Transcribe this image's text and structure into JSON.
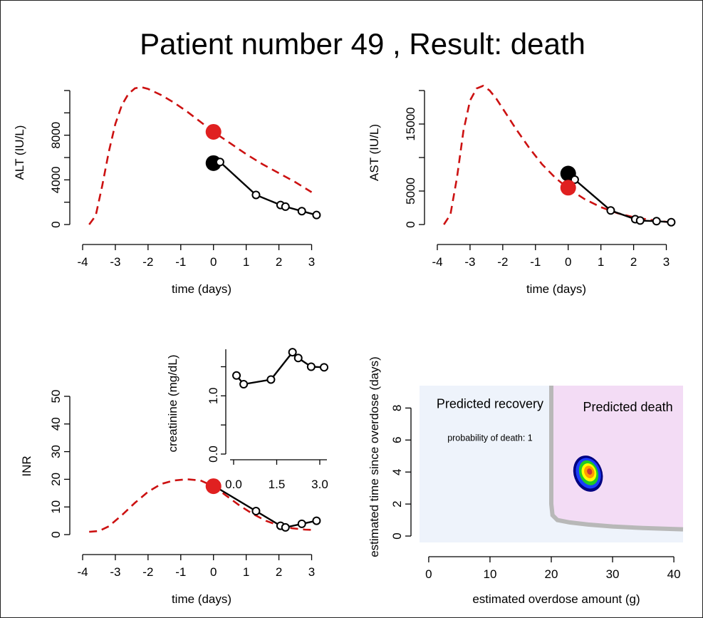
{
  "title": "Patient number 49 , Result: death",
  "chart_data": [
    {
      "type": "line",
      "id": "alt",
      "xlabel": "time (days)",
      "ylabel": "ALT (IU/L)",
      "xlim": [
        -4,
        3.25
      ],
      "ylim": [
        0,
        12000
      ],
      "xticks": [
        -4,
        -3,
        -2,
        -1,
        0,
        1,
        2,
        3
      ],
      "yticks": [
        0,
        4000,
        8000
      ],
      "series": [
        {
          "kind": "model-dashed",
          "x": [
            -3.8,
            -3.6,
            -3.4,
            -3.2,
            -3.0,
            -2.8,
            -2.6,
            -2.4,
            -2.2,
            -2.0,
            -1.6,
            -1.2,
            -0.8,
            -0.4,
            0,
            0.5,
            1.0,
            1.5,
            2.0,
            2.5,
            3.0
          ],
          "y": [
            0,
            800,
            3500,
            6500,
            9000,
            10700,
            11700,
            12200,
            12300,
            12150,
            11600,
            10900,
            10100,
            9200,
            8300,
            7300,
            6300,
            5400,
            4600,
            3800,
            2900
          ]
        },
        {
          "kind": "observed",
          "x": [
            0.2,
            1.3,
            2.05,
            2.2,
            2.7,
            3.15
          ],
          "y": [
            5600,
            2650,
            1750,
            1600,
            1200,
            850
          ]
        },
        {
          "kind": "marker-black",
          "x": [
            0
          ],
          "y": [
            5500
          ]
        },
        {
          "kind": "marker-red",
          "x": [
            0
          ],
          "y": [
            8300
          ]
        }
      ]
    },
    {
      "type": "line",
      "id": "ast",
      "xlabel": "time (days)",
      "ylabel": "AST (IU/L)",
      "xlim": [
        -4,
        3.25
      ],
      "ylim": [
        0,
        20000
      ],
      "xticks": [
        -4,
        -3,
        -2,
        -1,
        0,
        1,
        2,
        3
      ],
      "yticks": [
        0,
        5000,
        15000
      ],
      "series": [
        {
          "kind": "model-dashed",
          "x": [
            -3.8,
            -3.6,
            -3.4,
            -3.2,
            -3.0,
            -2.8,
            -2.6,
            -2.4,
            -2.2,
            -2.0,
            -1.6,
            -1.2,
            -0.8,
            -0.4,
            0,
            0.5,
            1.0,
            1.5,
            2.0,
            2.5,
            3.0,
            3.15
          ],
          "y": [
            0,
            1500,
            7000,
            14000,
            18500,
            20300,
            20700,
            20000,
            18800,
            17300,
            14300,
            11500,
            9000,
            7000,
            5400,
            3800,
            2600,
            1700,
            1100,
            700,
            400,
            300
          ]
        },
        {
          "kind": "observed",
          "x": [
            0.2,
            1.3,
            2.05,
            2.2,
            2.7,
            3.15
          ],
          "y": [
            6700,
            2100,
            800,
            600,
            500,
            350
          ]
        },
        {
          "kind": "marker-black",
          "x": [
            0
          ],
          "y": [
            7600
          ]
        },
        {
          "kind": "marker-red",
          "x": [
            0
          ],
          "y": [
            5500
          ]
        }
      ]
    },
    {
      "type": "line",
      "id": "inr",
      "xlabel": "time (days)",
      "ylabel": "INR",
      "xlim": [
        -4,
        3.25
      ],
      "ylim": [
        0,
        50
      ],
      "xticks": [
        -4,
        -3,
        -2,
        -1,
        0,
        1,
        2,
        3
      ],
      "yticks": [
        0,
        10,
        20,
        30,
        40,
        50
      ],
      "series": [
        {
          "kind": "model-dashed",
          "x": [
            -3.8,
            -3.5,
            -3.2,
            -2.8,
            -2.4,
            -2.0,
            -1.6,
            -1.2,
            -0.8,
            -0.4,
            0,
            0.4,
            0.8,
            1.2,
            1.6,
            2.0,
            2.4,
            2.8,
            3.0
          ],
          "y": [
            1,
            1.3,
            3,
            7,
            11.5,
            15.5,
            18.3,
            19.6,
            20,
            19.6,
            17.5,
            14,
            10.5,
            7.5,
            5,
            3.3,
            2.3,
            1.8,
            1.7
          ]
        },
        {
          "kind": "observed",
          "x": [
            0.1,
            1.3,
            2.05,
            2.2,
            2.7,
            3.15
          ],
          "y": [
            17,
            8.5,
            3.2,
            2.6,
            3.9,
            5.0
          ]
        },
        {
          "kind": "marker-red",
          "x": [
            0
          ],
          "y": [
            17.5
          ]
        }
      ]
    },
    {
      "type": "line",
      "id": "creatinine-inset",
      "xlabel": "",
      "ylabel": "creatinine (mg/dL)",
      "xlim": [
        0,
        3.1
      ],
      "ylim": [
        0,
        1.8
      ],
      "xticks": [
        0.0,
        1.5,
        3.0
      ],
      "yticks": [
        0.0,
        1.0
      ],
      "series": [
        {
          "kind": "observed",
          "x": [
            0.1,
            0.35,
            1.3,
            2.05,
            2.25,
            2.7,
            3.15
          ],
          "y": [
            1.35,
            1.2,
            1.28,
            1.75,
            1.65,
            1.5,
            1.49
          ]
        }
      ]
    },
    {
      "type": "heatmap",
      "id": "overdose-map",
      "xlabel": "estimated overdose amount (g)",
      "ylabel": "estimated time since overdose (days)",
      "xlim": [
        -1.5,
        41.5
      ],
      "ylim": [
        -0.4,
        9.4
      ],
      "xticks": [
        0,
        10,
        20,
        30,
        40
      ],
      "yticks": [
        0,
        2,
        4,
        6,
        8
      ],
      "regions": {
        "recovery_label": "Predicted recovery",
        "death_label": "Predicted death",
        "recovery_color": "#eef3fb",
        "death_color": "#f3dcf5"
      },
      "annotation": "probability of death: 1",
      "boundary": {
        "x": [
          20,
          20,
          20.2,
          21,
          23,
          26,
          30,
          35,
          41.5
        ],
        "y": [
          9.4,
          2.0,
          1.3,
          1.0,
          0.85,
          0.72,
          0.6,
          0.5,
          0.42
        ]
      },
      "estimate": {
        "x": 26,
        "y": 3.9
      },
      "contour_colors": [
        "#000080",
        "#1a3cff",
        "#22cc22",
        "#ffff00",
        "#ff9900",
        "#cc3333"
      ]
    }
  ]
}
